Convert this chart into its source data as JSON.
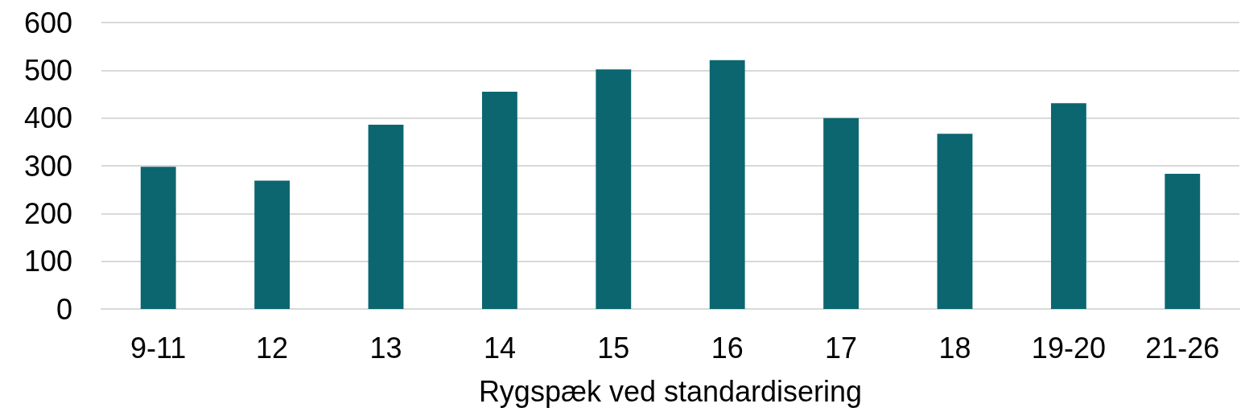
{
  "chart_data": {
    "type": "bar",
    "xlabel": "Rygspæk ved standardisering",
    "categories": [
      "9-11",
      "12",
      "13",
      "14",
      "15",
      "16",
      "17",
      "18",
      "19-20",
      "21-26"
    ],
    "values": [
      298,
      269,
      386,
      455,
      502,
      521,
      400,
      367,
      431,
      283
    ],
    "color": "#0b6670",
    "ylim": [
      0,
      600
    ],
    "yticks": [
      0,
      100,
      200,
      300,
      400,
      500,
      600
    ],
    "grid": "y"
  }
}
